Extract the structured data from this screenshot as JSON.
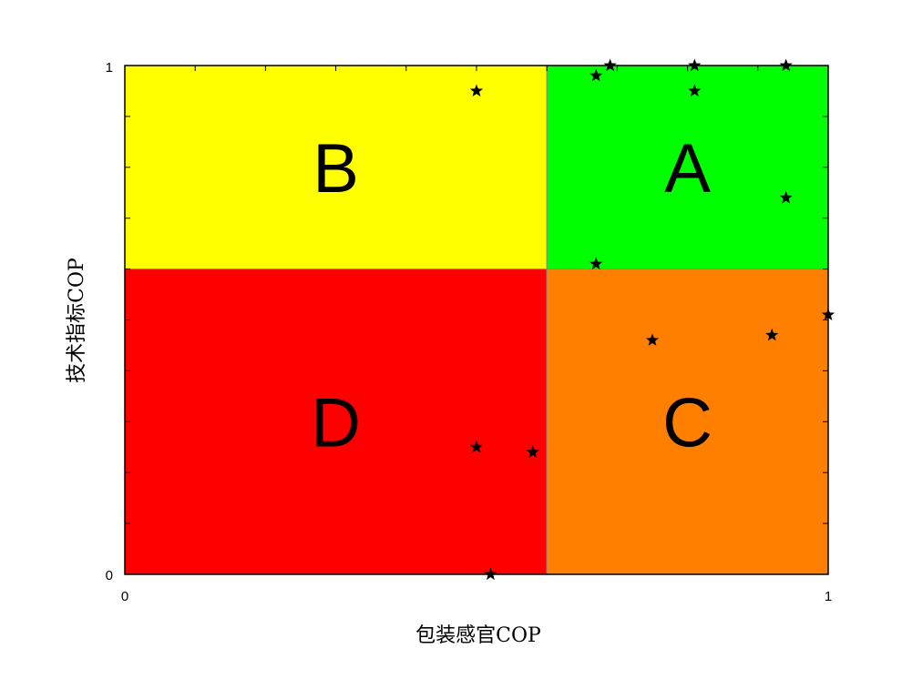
{
  "chart_data": {
    "type": "scatter",
    "title": "",
    "xlabel": "包装感官COP",
    "ylabel": "技术指标COP",
    "xlim": [
      0,
      1
    ],
    "ylim": [
      0,
      1
    ],
    "x_ticks": [
      "0",
      "1"
    ],
    "y_ticks": [
      "0",
      "1"
    ],
    "split": {
      "x": 0.6,
      "y": 0.6
    },
    "quadrants": [
      {
        "label": "B",
        "color": "#ffff00",
        "x_range": [
          0,
          0.6
        ],
        "y_range": [
          0.6,
          1
        ]
      },
      {
        "label": "A",
        "color": "#00ff00",
        "x_range": [
          0.6,
          1
        ],
        "y_range": [
          0.6,
          1
        ]
      },
      {
        "label": "D",
        "color": "#ff0000",
        "x_range": [
          0,
          0.6
        ],
        "y_range": [
          0,
          0.6
        ]
      },
      {
        "label": "C",
        "color": "#ff8000",
        "x_range": [
          0.6,
          1
        ],
        "y_range": [
          0,
          0.6
        ]
      }
    ],
    "marker": "star",
    "marker_color": "#000000",
    "points": [
      {
        "x": 0.5,
        "y": 0.95
      },
      {
        "x": 0.67,
        "y": 0.98
      },
      {
        "x": 0.69,
        "y": 1.0
      },
      {
        "x": 0.81,
        "y": 1.0
      },
      {
        "x": 0.81,
        "y": 0.95
      },
      {
        "x": 0.94,
        "y": 1.0
      },
      {
        "x": 0.94,
        "y": 0.74
      },
      {
        "x": 0.67,
        "y": 0.61
      },
      {
        "x": 0.75,
        "y": 0.46
      },
      {
        "x": 0.92,
        "y": 0.47
      },
      {
        "x": 1.0,
        "y": 0.51
      },
      {
        "x": 0.5,
        "y": 0.25
      },
      {
        "x": 0.58,
        "y": 0.24
      },
      {
        "x": 0.52,
        "y": 0.0
      }
    ]
  }
}
